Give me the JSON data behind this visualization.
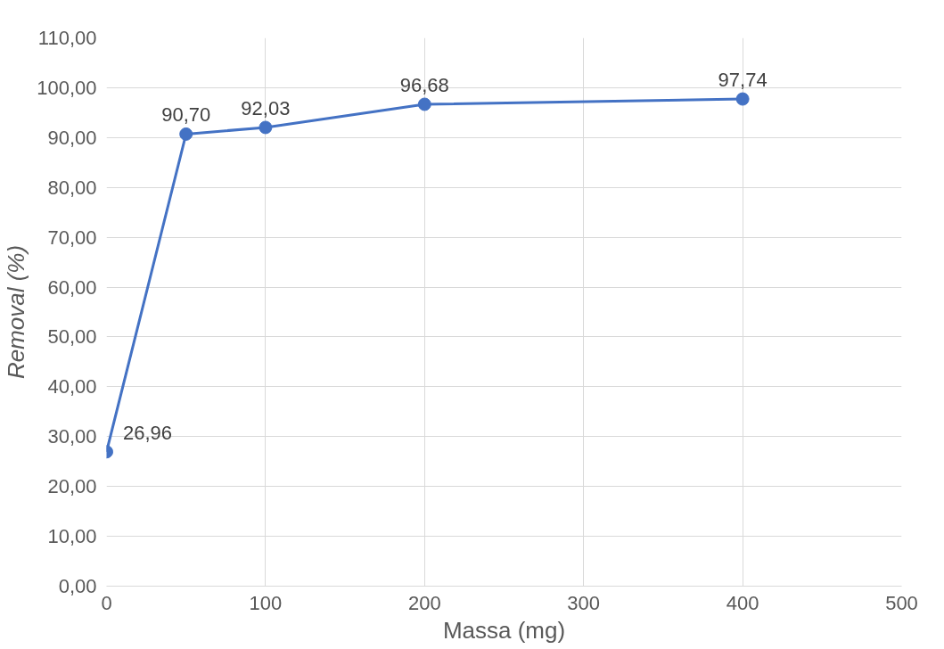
{
  "chart_data": {
    "type": "line",
    "xlabel": "Massa (mg)",
    "ylabel": "Removal (%)",
    "x": [
      0,
      50,
      100,
      200,
      400
    ],
    "series": [
      {
        "color": "#4472c4",
        "values": [
          26.96,
          90.7,
          92.03,
          96.68,
          97.74
        ],
        "value_labels": [
          "26,96",
          "90,70",
          "92,03",
          "96,68",
          "97,74"
        ]
      }
    ],
    "xlim": [
      0,
      500
    ],
    "xticks": [
      0,
      100,
      200,
      300,
      400,
      500
    ],
    "ylim": [
      0,
      110
    ],
    "yticks": [
      {
        "value": 0,
        "label": "0,00"
      },
      {
        "value": 10,
        "label": "10,00"
      },
      {
        "value": 20,
        "label": "20,00"
      },
      {
        "value": 30,
        "label": "30,00"
      },
      {
        "value": 40,
        "label": "40,00"
      },
      {
        "value": 50,
        "label": "50,00"
      },
      {
        "value": 60,
        "label": "60,00"
      },
      {
        "value": 70,
        "label": "70,00"
      },
      {
        "value": 80,
        "label": "80,00"
      },
      {
        "value": 90,
        "label": "90,00"
      },
      {
        "value": 100,
        "label": "100,00"
      },
      {
        "value": 110,
        "label": "110,00"
      }
    ],
    "grid": true,
    "marker": "circle",
    "line_style": "solid"
  }
}
